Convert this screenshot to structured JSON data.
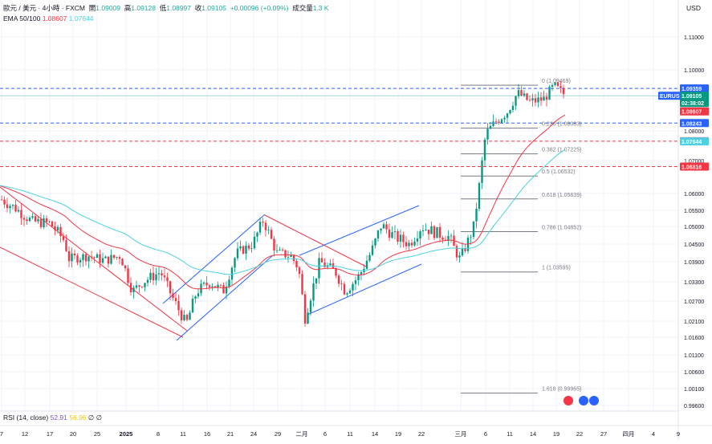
{
  "header": {
    "symbol": "歐元 / 美元 · 4小時 · FXCM",
    "open_label": "開",
    "open": "1.09009",
    "high_label": "高",
    "high": "1.09128",
    "low_label": "低",
    "low": "1.08997",
    "close_label": "收",
    "close": "1.09105",
    "change": "+0.00096 (+0.09%)",
    "volume_label": "成交量",
    "volume": "1.3 K",
    "ema_label": "EMA 50/100",
    "ema50": "1.08607",
    "ema100": "1.07644"
  },
  "currency": "USD",
  "colors": {
    "up": "#089981",
    "down": "#f23645",
    "ema50": "#f23645",
    "ema100": "#4dd0e1",
    "channel_red": "#f23645",
    "channel_blue": "#2962ff",
    "fib": "#787b86",
    "dash_blue": "#2962ff",
    "dash_red": "#f23645"
  },
  "price_scale": [
    "1.11000",
    "1.10000",
    "1.09000",
    "1.08000",
    "1.07000",
    "1.06000",
    "1.05500",
    "1.05000",
    "1.04500",
    "1.03900",
    "1.03300",
    "1.02700",
    "1.02100",
    "1.01600",
    "1.01100",
    "1.00600",
    "1.00100",
    "0.99600"
  ],
  "price_tags": [
    {
      "label": "1.09359",
      "price": 1.09359,
      "color": "#2962ff"
    },
    {
      "label": "EURUSD",
      "price": 1.09105,
      "color": "#2962ff",
      "left": true
    },
    {
      "label": "1.09105",
      "price": 1.09105,
      "color": "#089981"
    },
    {
      "label": "02:38:02",
      "price": 1.09105,
      "color": "#089981",
      "sub": true
    },
    {
      "label": "1.08607",
      "price": 1.08607,
      "color": "#f23645"
    },
    {
      "label": "1.08243",
      "price": 1.08243,
      "color": "#2962ff"
    },
    {
      "label": "1.07652",
      "price": 1.07652,
      "color": "#f23645"
    },
    {
      "label": "1.07644",
      "price": 1.07644,
      "color": "#4dd0e1"
    },
    {
      "label": "1.06816",
      "price": 1.06816,
      "color": "#f23645"
    }
  ],
  "dash_lines": [
    {
      "price": 1.09359,
      "color": "#2962ff"
    },
    {
      "price": 1.08243,
      "color": "#2962ff"
    },
    {
      "price": 1.07652,
      "color": "#f23645"
    },
    {
      "price": 1.06816,
      "color": "#f23645"
    }
  ],
  "fib_levels": [
    {
      "label": "0 (1.09469)",
      "price": 1.09469
    },
    {
      "label": "0.236 (1.08083)",
      "price": 1.08083
    },
    {
      "label": "0.382 (1.07225)",
      "price": 1.07225
    },
    {
      "label": "0.5 (1.06532)",
      "price": 1.06532
    },
    {
      "label": "0.618 (1.05839)",
      "price": 1.05839
    },
    {
      "label": "0.786 (1.04852)",
      "price": 1.04852
    },
    {
      "label": "1 (1.03595)",
      "price": 1.03595
    },
    {
      "label": "1.618 (0.99965)",
      "price": 0.99965
    }
  ],
  "x_axis": [
    "7",
    "12",
    "17",
    "20",
    "25",
    "2025",
    "8",
    "11",
    "16",
    "21",
    "24",
    "29",
    "二月",
    "6",
    "11",
    "14",
    "19",
    "22",
    "三月",
    "6",
    "11",
    "14",
    "19",
    "22",
    "27",
    "四月",
    "4",
    "9"
  ],
  "rsi": {
    "label": "RSI (14, close)",
    "value1": "52.91",
    "value2": "56.96",
    "value3": "∅",
    "value4": "∅"
  },
  "chart_data": {
    "type": "candlestick",
    "symbol": "EURUSD",
    "timeframe": "4h",
    "price_range": [
      0.996,
      1.11
    ],
    "trend": [
      {
        "date": "12-07",
        "price": 1.058
      },
      {
        "date": "12-12",
        "price": 1.052
      },
      {
        "date": "12-17",
        "price": 1.05
      },
      {
        "date": "12-20",
        "price": 1.04
      },
      {
        "date": "12-25",
        "price": 1.041
      },
      {
        "date": "01-02",
        "price": 1.038
      },
      {
        "date": "01-08",
        "price": 1.033
      },
      {
        "date": "01-11",
        "price": 1.024
      },
      {
        "date": "01-16",
        "price": 1.03
      },
      {
        "date": "01-21",
        "price": 1.042
      },
      {
        "date": "01-24",
        "price": 1.05
      },
      {
        "date": "01-29",
        "price": 1.04
      },
      {
        "date": "02-03",
        "price": 1.022
      },
      {
        "date": "02-06",
        "price": 1.038
      },
      {
        "date": "02-11",
        "price": 1.032
      },
      {
        "date": "02-14",
        "price": 1.048
      },
      {
        "date": "02-19",
        "price": 1.046
      },
      {
        "date": "02-22",
        "price": 1.049
      },
      {
        "date": "03-03",
        "price": 1.04
      },
      {
        "date": "03-06",
        "price": 1.079
      },
      {
        "date": "03-11",
        "price": 1.091
      },
      {
        "date": "03-14",
        "price": 1.088
      },
      {
        "date": "03-18",
        "price": 1.094
      },
      {
        "date": "03-19",
        "price": 1.09105
      }
    ]
  }
}
